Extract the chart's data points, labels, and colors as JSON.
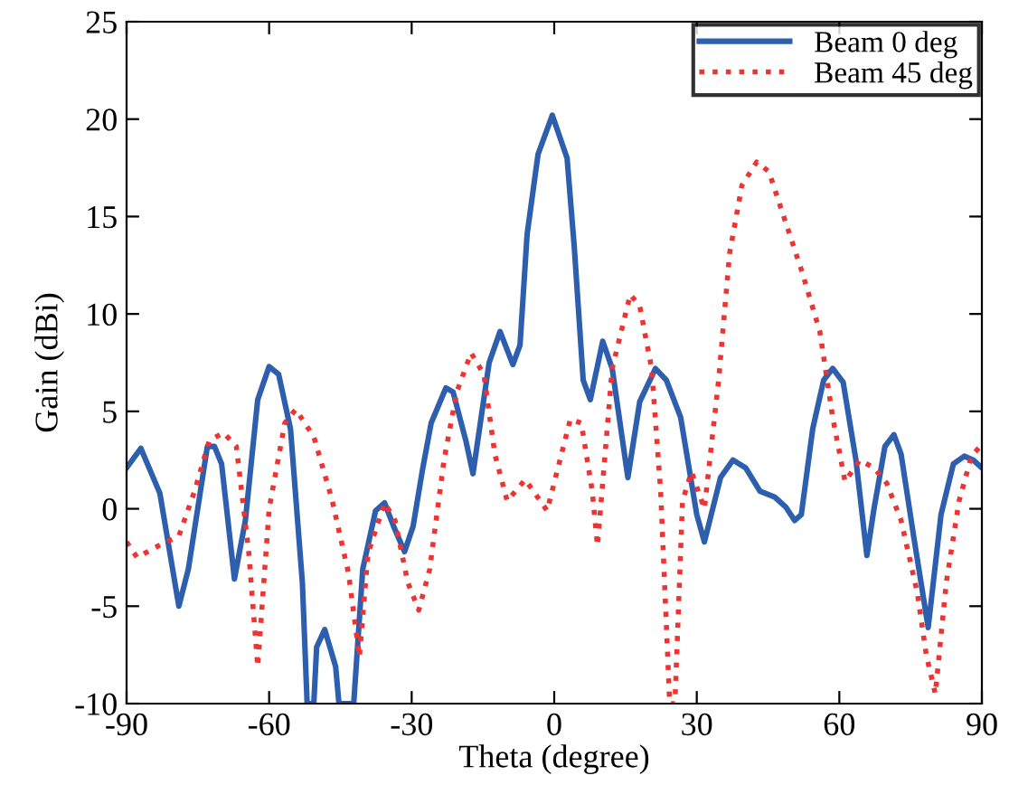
{
  "chart_data": {
    "type": "line",
    "xlabel": "Theta (degree)",
    "ylabel": "Gain (dBi)",
    "xlim": [
      -90,
      90
    ],
    "xticks": [
      -90,
      -60,
      -30,
      0,
      30,
      60,
      90
    ],
    "ylim": [
      -10,
      25
    ],
    "yticks": [
      -10,
      -5,
      0,
      5,
      10,
      15,
      20,
      25
    ],
    "grid": false,
    "legend": "top right",
    "marker": "none",
    "series": [
      {
        "name": "Beam 0 deg",
        "color": "#2e5fae",
        "line_style": "solid",
        "x": [
          -90,
          -87,
          -83,
          -79,
          -77,
          -73,
          -71.5,
          -70,
          -67.3,
          -65,
          -62.4,
          -60,
          -58,
          -55.5,
          -53,
          -52,
          -50.6,
          -50,
          -48.3,
          -46,
          -45.3,
          -42.2,
          -40.3,
          -37.6,
          -35.7,
          -33.8,
          -31.5,
          -29.7,
          -27.8,
          -25.9,
          -22.8,
          -21.3,
          -18.6,
          -17.1,
          -13.7,
          -11.4,
          -8.7,
          -7.2,
          -5.7,
          -3.4,
          -0.4,
          2.7,
          4.2,
          6.1,
          7.6,
          10.2,
          12.2,
          15.5,
          18,
          21.3,
          23.6,
          26.6,
          30,
          31.6,
          35,
          37.6,
          40.3,
          43.3,
          46.4,
          48.7,
          50.6,
          52,
          54.4,
          56.7,
          58.6,
          60.8,
          63.5,
          65.8,
          67.3,
          69.6,
          71.5,
          73,
          75.7,
          78.7,
          81.4,
          84,
          86.3,
          88.2,
          90
        ],
        "values": [
          2.1,
          3.1,
          0.8,
          -5.0,
          -3.1,
          3.2,
          3.2,
          2.3,
          -3.6,
          -0.6,
          5.6,
          7.3,
          6.9,
          4.1,
          -3.8,
          -10,
          -10,
          -7.1,
          -6.2,
          -8.1,
          -10,
          -10,
          -3.1,
          -0.1,
          0.3,
          -0.9,
          -2.2,
          -0.9,
          1.9,
          4.4,
          6.2,
          6.0,
          3.5,
          1.8,
          7.5,
          9.1,
          7.4,
          8.4,
          14.1,
          18.2,
          20.2,
          18.0,
          13.5,
          6.6,
          5.6,
          8.6,
          7.2,
          1.6,
          5.5,
          7.2,
          6.6,
          4.7,
          -0.3,
          -1.7,
          1.6,
          2.5,
          2.1,
          0.9,
          0.6,
          0.1,
          -0.6,
          -0.3,
          4.1,
          6.6,
          7.2,
          6.5,
          2.5,
          -2.4,
          0,
          3.2,
          3.8,
          2.8,
          -1.5,
          -6.1,
          -0.3,
          2.3,
          2.7,
          2.5,
          2.1
        ]
      },
      {
        "name": "Beam 45 deg",
        "color": "#ee3333",
        "line_style": "dotted",
        "x": [
          -90,
          -87.8,
          -83.3,
          -79,
          -75.7,
          -72.6,
          -69.6,
          -66.9,
          -64.3,
          -62.4,
          -60,
          -56.7,
          -54.4,
          -50.6,
          -46.8,
          -43.3,
          -41,
          -39.2,
          -35.7,
          -33.5,
          -30.8,
          -28.5,
          -26.2,
          -23.2,
          -20.5,
          -17.5,
          -14.8,
          -12.5,
          -9.9,
          -6.1,
          -1.5,
          3.4,
          5.7,
          8,
          9.1,
          12.2,
          16,
          18,
          20.5,
          22.4,
          24.3,
          25.4,
          27,
          28.9,
          31.6,
          34.6,
          36.9,
          39.5,
          42.6,
          45.2,
          48.3,
          52.1,
          55.9,
          58.6,
          61.2,
          64.3,
          67.3,
          70,
          73,
          76.4,
          78.3,
          80.2,
          82.5,
          85.2,
          87.8,
          90
        ],
        "values": [
          -1.7,
          -2.5,
          -1.9,
          -1.4,
          0.9,
          3.5,
          3.9,
          3.2,
          -2.2,
          -8.1,
          0,
          4.4,
          5.1,
          3.7,
          0.5,
          -3.3,
          -7.6,
          -2.3,
          0.3,
          -0.6,
          -3.8,
          -5.2,
          -3.1,
          2.5,
          6.0,
          8.0,
          6.9,
          2.8,
          0.4,
          1.5,
          -0.1,
          4.6,
          4.4,
          0.9,
          -1.9,
          7.2,
          11.0,
          10.4,
          7.2,
          0.9,
          -10,
          -10,
          0.4,
          1.9,
          0,
          6.6,
          13.1,
          16.6,
          17.8,
          17.3,
          15.0,
          12.2,
          9.1,
          4.7,
          1.4,
          2.5,
          2.1,
          1.3,
          -0.6,
          -4.3,
          -7.5,
          -9.5,
          -3.8,
          0.4,
          2.7,
          3.3
        ]
      }
    ]
  }
}
